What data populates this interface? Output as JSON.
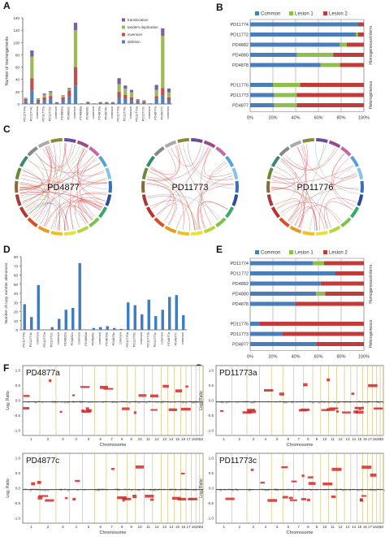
{
  "panel_labels": {
    "A": "A",
    "B": "B",
    "C": "C",
    "D": "D",
    "E": "E",
    "F": "F",
    "G": "G"
  },
  "panelA": {
    "ylabel": "Number of rearrangements",
    "legend": [
      "translocation",
      "tandem duplication",
      "inversion",
      "deletion"
    ],
    "colors": {
      "translocation": "#7b5ea7",
      "tandem duplication": "#9bbb59",
      "inversion": "#c0504d",
      "deletion": "#4f81bd"
    },
    "yticks": [
      "0",
      "20",
      "40",
      "60",
      "80",
      "100",
      "120",
      "140"
    ],
    "categories": [
      "PD11774a",
      "PD11774c",
      "common",
      "PD11772a",
      "PD11772c",
      "common",
      "PD4882a",
      "PD4882c",
      "common",
      "PD4880a",
      "PD4880c",
      "common",
      "PD4878a",
      "PD4878c",
      "common",
      "PD11776a",
      "PD11776c",
      "common",
      "PD11773a",
      "PD11773c",
      "common",
      "PD4877a",
      "PD4877c",
      "common"
    ]
  },
  "panelB": {
    "legend": [
      "Common",
      "Lesion 1",
      "Lesion 2"
    ],
    "samples": [
      "PD11774",
      "PD11772",
      "PD4882",
      "PD4880",
      "PD4878",
      "PD11776",
      "PD11773",
      "PD4877"
    ],
    "xticks": [
      "0%",
      "20%",
      "40%",
      "60%",
      "80%",
      "100%"
    ],
    "group_labels": [
      "Homogeneous/interm.",
      "Heterogeneous"
    ]
  },
  "panelC": {
    "circos": [
      "PD4877",
      "PD11773",
      "PD11776"
    ]
  },
  "panelD": {
    "ylabel": "Number of copy number alterations",
    "yticks": [
      "0",
      "10",
      "20",
      "30",
      "40",
      "50",
      "60",
      "70",
      "80"
    ]
  },
  "panelE": {
    "legend": [
      "Common",
      "Lesion 1",
      "Lesion 2"
    ],
    "samples": [
      "PD11774",
      "PD11772",
      "PD4882",
      "PD4880",
      "PD4878",
      "PD11776",
      "PD11773",
      "PD4877"
    ],
    "xticks": [
      "0%",
      "20%",
      "40%",
      "60%",
      "80%",
      "100%"
    ],
    "group_labels": [
      "Homogeneous/interm.",
      "Heterogeneous"
    ]
  },
  "cn_plots": {
    "titles": [
      "PD4877a",
      "PD11773a",
      "PD4877c",
      "PD11773c"
    ],
    "ylabel": "Log₂ Ratio",
    "xlabel": "Chromosome",
    "yticks": [
      "1.0",
      "0.5",
      "0.0",
      "-0.5",
      "-1.0"
    ],
    "chromosomes": [
      "1",
      "2",
      "3",
      "4",
      "5",
      "6",
      "7",
      "8",
      "9",
      "10",
      "11",
      "12",
      "13",
      "14",
      "15",
      "16",
      "17",
      "18",
      "20",
      "22"
    ]
  },
  "chart_data": [
    {
      "type": "bar",
      "title": "",
      "ylabel": "Number of rearrangements",
      "ylim": [
        0,
        140
      ],
      "categories": [
        "PD11774a",
        "PD11774c",
        "common",
        "PD11772a",
        "PD11772c",
        "common",
        "PD4882a",
        "PD4882c",
        "common",
        "PD4880a",
        "PD4880c",
        "common",
        "PD4878a",
        "PD4878c",
        "common",
        "PD11776a",
        "PD11776c",
        "common",
        "PD11773a",
        "PD11773c",
        "common",
        "PD4877a",
        "PD4877c",
        "common"
      ],
      "stacked": true,
      "series": [
        {
          "name": "deletion",
          "values": [
            5,
            22,
            4,
            6,
            8,
            2,
            6,
            12,
            30,
            1,
            2,
            1,
            2,
            2,
            2,
            10,
            8,
            6,
            4,
            2,
            1,
            8,
            14,
            6
          ]
        },
        {
          "name": "inversion",
          "values": [
            3,
            20,
            3,
            5,
            5,
            1,
            5,
            10,
            30,
            0,
            1,
            0,
            1,
            1,
            1,
            10,
            7,
            5,
            2,
            2,
            0,
            5,
            12,
            5
          ]
        },
        {
          "name": "tandem duplication",
          "values": [
            1,
            35,
            1,
            4,
            6,
            0,
            2,
            2,
            60,
            0,
            1,
            0,
            0,
            0,
            0,
            12,
            10,
            8,
            1,
            1,
            0,
            10,
            85,
            8
          ]
        },
        {
          "name": "translocation",
          "values": [
            1,
            10,
            1,
            2,
            2,
            0,
            1,
            2,
            12,
            0,
            0,
            0,
            0,
            0,
            0,
            10,
            5,
            4,
            1,
            1,
            0,
            8,
            12,
            6
          ]
        }
      ]
    },
    {
      "type": "bar",
      "orientation": "horizontal",
      "stacked": true,
      "categories": [
        "PD11774",
        "PD11772",
        "PD4882",
        "PD4880",
        "PD4878",
        "PD11776",
        "PD11773",
        "PD4877"
      ],
      "series": [
        {
          "name": "Common",
          "values": [
            95,
            93,
            79,
            41,
            62,
            20,
            21,
            21
          ]
        },
        {
          "name": "Lesion 1",
          "values": [
            0,
            2,
            6,
            32,
            17,
            24,
            20,
            20
          ]
        },
        {
          "name": "Lesion 2",
          "values": [
            5,
            5,
            15,
            27,
            21,
            56,
            59,
            59
          ]
        }
      ]
    },
    {
      "type": "bar",
      "ylabel": "Number of copy number alterations",
      "ylim": [
        0,
        80
      ],
      "categories": [
        "PD11774a",
        "PD11774c",
        "common",
        "PD11772a",
        "PD11772c",
        "common",
        "PD4882a",
        "PD4882c",
        "common",
        "PD4880a",
        "PD4880c",
        "common",
        "PD4878a",
        "PD4878c",
        "common",
        "PD11776a",
        "PD11776c",
        "common",
        "PD11773a",
        "PD11773c",
        "common",
        "PD4877a",
        "PD4877c",
        "common"
      ],
      "values": [
        28,
        14,
        49,
        0,
        3,
        12,
        22,
        24,
        73,
        0,
        2,
        3,
        4,
        2,
        1,
        30,
        27,
        17,
        33,
        15,
        22,
        36,
        38,
        16
      ]
    },
    {
      "type": "bar",
      "orientation": "horizontal",
      "stacked": true,
      "categories": [
        "PD11774",
        "PD11772",
        "PD4882",
        "PD4880",
        "PD4878",
        "PD11776",
        "PD11773",
        "PD4877"
      ],
      "series": [
        {
          "name": "Common",
          "values": [
            55,
            75,
            62,
            58,
            40,
            8,
            28,
            58
          ]
        },
        {
          "name": "Lesion 1",
          "values": [
            10,
            0,
            0,
            8,
            0,
            0,
            0,
            0
          ]
        },
        {
          "name": "Lesion 2",
          "values": [
            35,
            25,
            38,
            34,
            60,
            92,
            72,
            42
          ]
        }
      ]
    }
  ]
}
